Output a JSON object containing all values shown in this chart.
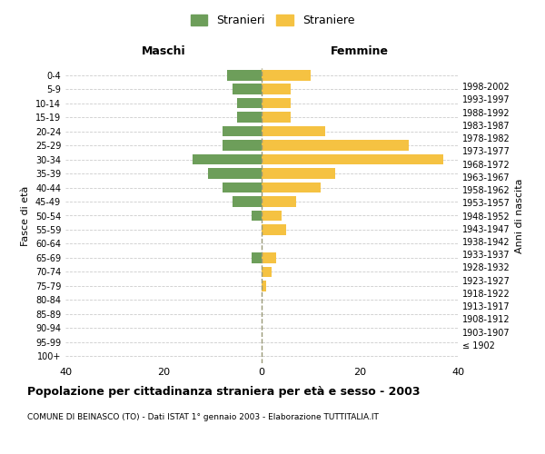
{
  "age_groups": [
    "100+",
    "95-99",
    "90-94",
    "85-89",
    "80-84",
    "75-79",
    "70-74",
    "65-69",
    "60-64",
    "55-59",
    "50-54",
    "45-49",
    "40-44",
    "35-39",
    "30-34",
    "25-29",
    "20-24",
    "15-19",
    "10-14",
    "5-9",
    "0-4"
  ],
  "birth_years": [
    "≤ 1902",
    "1903-1907",
    "1908-1912",
    "1913-1917",
    "1918-1922",
    "1923-1927",
    "1928-1932",
    "1933-1937",
    "1938-1942",
    "1943-1947",
    "1948-1952",
    "1953-1957",
    "1958-1962",
    "1963-1967",
    "1968-1972",
    "1973-1977",
    "1978-1982",
    "1983-1987",
    "1988-1992",
    "1993-1997",
    "1998-2002"
  ],
  "maschi": [
    0,
    0,
    0,
    0,
    0,
    0,
    0,
    2,
    0,
    0,
    2,
    6,
    8,
    11,
    14,
    8,
    8,
    5,
    5,
    6,
    7
  ],
  "femmine": [
    0,
    0,
    0,
    0,
    0,
    1,
    2,
    3,
    0,
    5,
    4,
    7,
    12,
    15,
    37,
    30,
    13,
    6,
    6,
    6,
    10
  ],
  "color_maschi": "#6d9e5a",
  "color_femmine": "#f5c242",
  "xlim": 40,
  "title": "Popolazione per cittadinanza straniera per età e sesso - 2003",
  "subtitle": "COMUNE DI BEINASCO (TO) - Dati ISTAT 1° gennaio 2003 - Elaborazione TUTTITALIA.IT",
  "legend_stranieri": "Stranieri",
  "legend_straniere": "Straniere",
  "label_maschi": "Maschi",
  "label_femmine": "Femmine",
  "label_fasce_eta": "Fasce di età",
  "label_anni_nascita": "Anni di nascita",
  "background_color": "#ffffff",
  "grid_color": "#cccccc",
  "dashed_line_color": "#999977"
}
